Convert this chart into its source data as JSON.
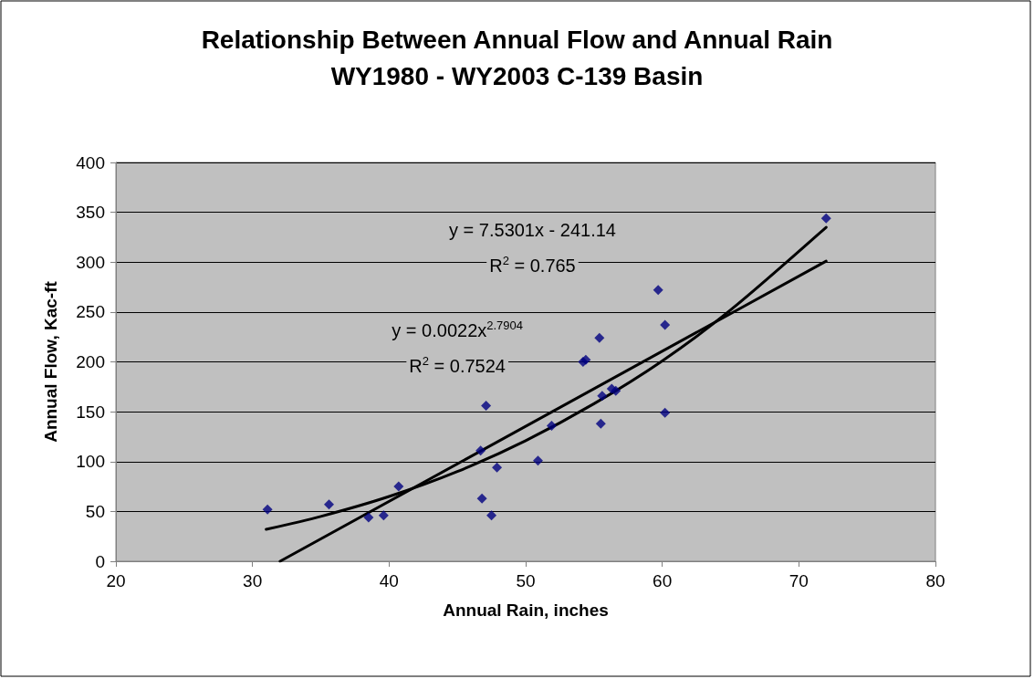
{
  "chart_data": {
    "type": "scatter",
    "title": "Relationship Between Annual Flow and Annual Rain\nWY1980 - WY2003 C-139 Basin",
    "xlabel": "Annual Rain, inches",
    "ylabel": "Annual Flow, Kac-ft",
    "xlim": [
      20,
      80
    ],
    "xticks": [
      20,
      30,
      40,
      50,
      60,
      70,
      80
    ],
    "ylim": [
      0,
      400
    ],
    "yticks": [
      0,
      50,
      100,
      150,
      200,
      250,
      300,
      350,
      400
    ],
    "grid": "y",
    "marker": "diamond",
    "series": [
      {
        "color": "#000080",
        "x": [
          31.1,
          35.6,
          38.5,
          39.6,
          40.7,
          46.7,
          47.1,
          46.8,
          47.5,
          47.9,
          50.9,
          51.9,
          54.2,
          54.4,
          55.4,
          55.5,
          55.6,
          56.3,
          56.6,
          59.7,
          60.2,
          60.2,
          72.0
        ],
        "values": [
          52,
          57,
          44,
          46,
          75,
          111,
          156,
          63,
          46,
          94,
          101,
          136,
          200,
          202,
          224,
          138,
          166,
          173,
          171,
          272,
          237,
          149,
          344
        ]
      },
      {
        "type": "line",
        "color": "#000000",
        "marker": "none",
        "line_style": "solid",
        "x": [
          32.02,
          72
        ],
        "values": [
          0,
          301
        ]
      },
      {
        "type": "line",
        "color": "#000000",
        "marker": "none",
        "line_style": "solid",
        "x": [
          31,
          35,
          40,
          45,
          50,
          55,
          60,
          65,
          72
        ],
        "values": [
          32,
          45,
          65,
          90,
          121,
          158,
          201,
          252,
          335
        ]
      }
    ],
    "annotations": [
      "y = 7.5301x - 241.14",
      "R$^{2}$ = 0.765",
      "y = 0.0022x$^{2.7904}$",
      "R$^{2}$ = 0.7524"
    ]
  }
}
